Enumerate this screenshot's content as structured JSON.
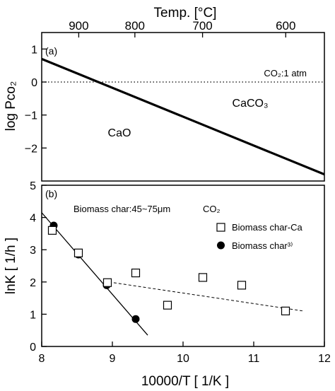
{
  "chart_data": [
    {
      "panel": "(a)",
      "type": "line",
      "top_axis": {
        "label": "Temp. [°C]",
        "ticks": [
          {
            "label": "900",
            "value": 900
          },
          {
            "label": "800",
            "value": 800
          },
          {
            "label": "700",
            "value": 700
          },
          {
            "label": "600",
            "value": 600
          }
        ]
      },
      "ylabel": "log Pco₂",
      "ylim": [
        -3,
        1.5
      ],
      "yticks": [
        {
          "value": 1,
          "label": "1"
        },
        {
          "value": 0,
          "label": "0"
        },
        {
          "value": -1,
          "label": "−1"
        },
        {
          "value": -2,
          "label": "−2"
        }
      ],
      "series": [
        {
          "style": "solid",
          "x": [
            8.0,
            12.0
          ],
          "y": [
            0.7,
            -2.8
          ]
        }
      ],
      "reference_line": {
        "y": 0,
        "style": "dotted",
        "label": "CO₂:1 atm"
      },
      "regions": [
        {
          "label": "CaO",
          "x": 9.1,
          "y": -1.65
        },
        {
          "label": "CaCO₃",
          "x": 10.95,
          "y": -0.75
        }
      ]
    },
    {
      "panel": "(b)",
      "type": "scatter",
      "xlabel": "10000/T  [ 1/K ]",
      "ylabel": "lnK  [ 1/h ]",
      "xlim": [
        8,
        12
      ],
      "ylim": [
        0,
        5
      ],
      "xticks": [
        8,
        9,
        10,
        11,
        12
      ],
      "yticks": [
        0,
        1,
        2,
        3,
        4,
        5
      ],
      "annotation": "Biomass char:45~75μm",
      "legend_title": "CO₂",
      "series": [
        {
          "name": "Biomass char-Ca",
          "marker": "open-square",
          "x": [
            8.15,
            8.52,
            8.93,
            9.33,
            9.78,
            10.28,
            10.83,
            11.45
          ],
          "y": [
            3.6,
            2.9,
            1.98,
            2.28,
            1.28,
            2.14,
            1.9,
            1.1
          ]
        },
        {
          "name": "Biomass char³⁾",
          "marker": "filled-circle",
          "x": [
            8.17,
            8.52,
            8.92,
            9.33
          ],
          "y": [
            3.75,
            2.85,
            1.9,
            0.85
          ]
        }
      ],
      "fit_lines": [
        {
          "style": "solid",
          "x": [
            8.0,
            9.5
          ],
          "y": [
            4.15,
            0.35
          ]
        },
        {
          "style": "dashed",
          "x": [
            8.95,
            11.7
          ],
          "y": [
            2.0,
            1.1
          ]
        }
      ]
    }
  ]
}
